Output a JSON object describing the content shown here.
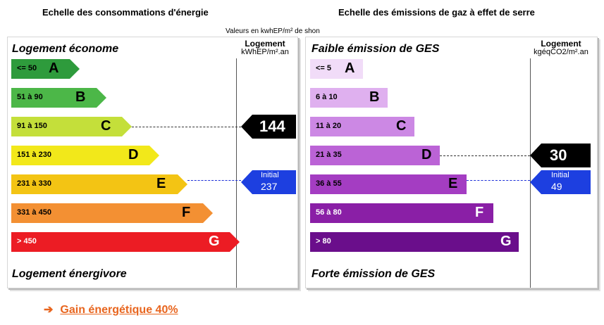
{
  "energy": {
    "title": "Echelle des consommations d'énergie",
    "units_note": "Valeurs en kwhEP/m² de shon",
    "top_label": "Logement économe",
    "bottom_label": "Logement énergivore",
    "column_header": "Logement",
    "column_unit": "kWhEP/m².an",
    "classes": [
      {
        "range": "<= 50",
        "letter": "A",
        "color": "#2e9b3c"
      },
      {
        "range": "51 à 90",
        "letter": "B",
        "color": "#4cb748"
      },
      {
        "range": "91 à 150",
        "letter": "C",
        "color": "#c4df3a"
      },
      {
        "range": "151 à 230",
        "letter": "D",
        "color": "#f2e81a"
      },
      {
        "range": "231 à 330",
        "letter": "E",
        "color": "#f3c414"
      },
      {
        "range": "331 à 450",
        "letter": "F",
        "color": "#f39033"
      },
      {
        "range": "> 450",
        "letter": "G",
        "color": "#ec1c24"
      }
    ],
    "current": {
      "value": "144",
      "class": "C"
    },
    "initial": {
      "label": "Initial",
      "value": "237",
      "class": "E"
    }
  },
  "ges": {
    "title": "Echelle des émissions de gaz à effet de serre",
    "top_label": "Faible émission de GES",
    "bottom_label": "Forte émission de GES",
    "column_header": "Logement",
    "column_unit": "kgéqCO2/m².an",
    "classes": [
      {
        "range": "<= 5",
        "letter": "A",
        "color": "#f1dcf8"
      },
      {
        "range": "6 à 10",
        "letter": "B",
        "color": "#dfb0ef"
      },
      {
        "range": "11 à 20",
        "letter": "C",
        "color": "#cc88e4"
      },
      {
        "range": "21 à 35",
        "letter": "D",
        "color": "#bb63d6"
      },
      {
        "range": "36 à 55",
        "letter": "E",
        "color": "#a43dc2"
      },
      {
        "range": "56 à 80",
        "letter": "F",
        "color": "#8a1fa6"
      },
      {
        "range": "> 80",
        "letter": "G",
        "color": "#6a0e8b"
      }
    ],
    "current": {
      "value": "30",
      "class": "D"
    },
    "initial": {
      "label": "Initial",
      "value": "49",
      "class": "E"
    }
  },
  "gain": {
    "arrow": "➔",
    "text": "Gain énergétique 40%",
    "color": "#e8651e"
  }
}
